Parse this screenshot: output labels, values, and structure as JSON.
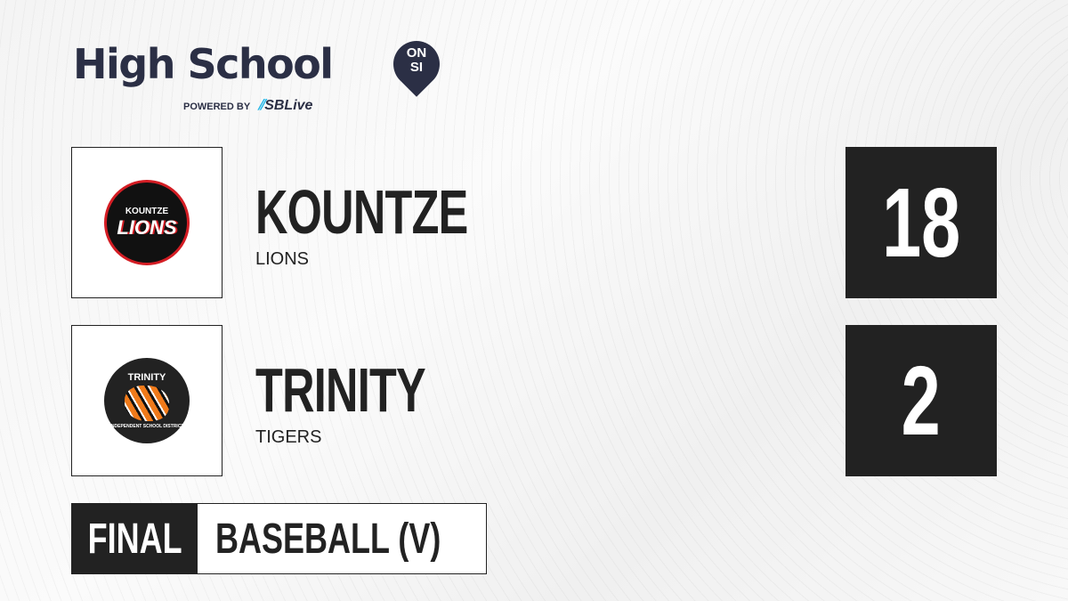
{
  "brand": {
    "title": "High School",
    "badge_top": "ON",
    "badge_bottom": "SI",
    "powered_by": "POWERED BY",
    "partner": "SBLive"
  },
  "teams": [
    {
      "name": "KOUNTZE",
      "mascot": "LIONS",
      "score": "18",
      "logo_text_top": "KOUNTZE",
      "logo_text_main": "LIONS"
    },
    {
      "name": "TRINITY",
      "mascot": "TIGERS",
      "score": "2",
      "logo_text_top": "TRINITY",
      "logo_text_bottom": "INDEPENDENT SCHOOL DISTRICT"
    }
  ],
  "footer": {
    "status": "FINAL",
    "sport": "BASEBALL (V)"
  },
  "colors": {
    "dark": "#222222",
    "brand_navy": "#2b2f45",
    "sblive_blue": "#1fb6e8",
    "lions_red": "#d41d24",
    "tigers_orange": "#f07a1a"
  }
}
